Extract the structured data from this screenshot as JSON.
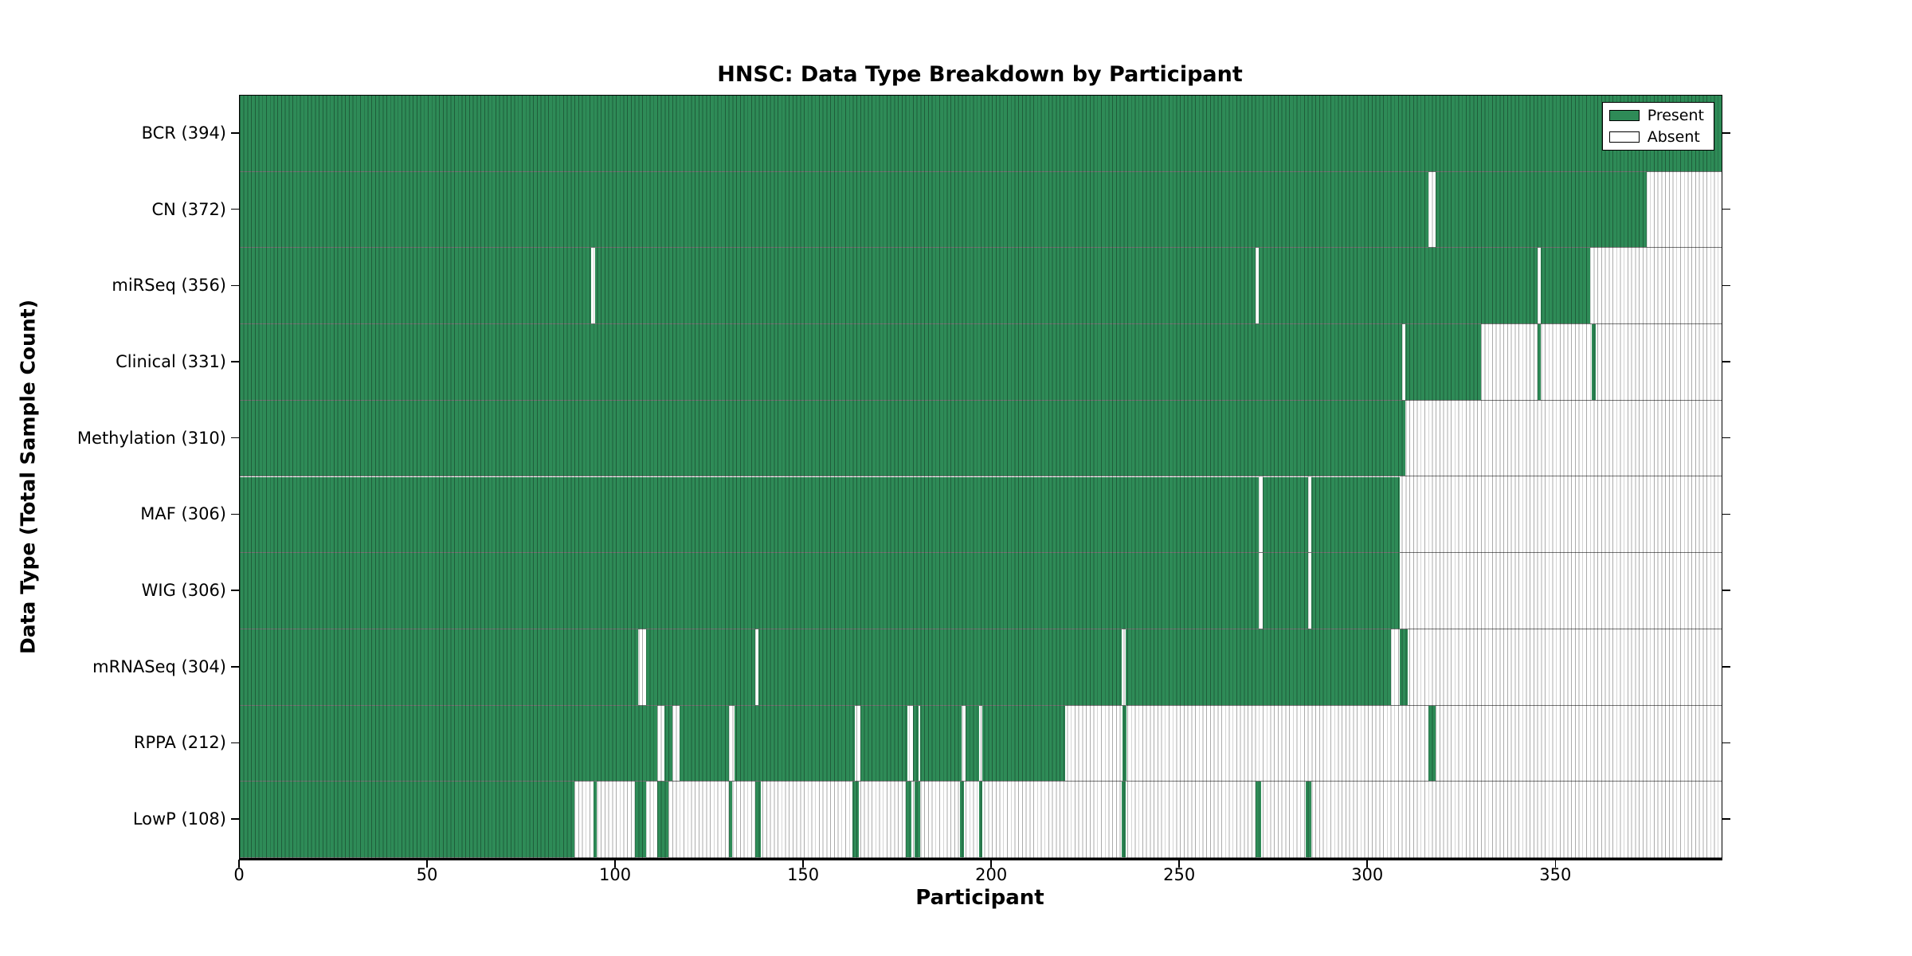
{
  "chart_data": {
    "type": "heatmap",
    "title": "HNSC: Data Type Breakdown by Participant",
    "xlabel": "Participant",
    "ylabel": "Data Type (Total Sample Count)",
    "x_max": 394,
    "x_ticks": [
      0,
      50,
      100,
      150,
      200,
      250,
      300,
      350
    ],
    "grid": "per-participant vertical cell stripes, dark row separator lines",
    "legend_position": "upper right inside plot",
    "colors": {
      "present": "#2e8b57",
      "absent": "#ffffff",
      "stripe_line": "rgba(0,0,0,0.33)",
      "row_separator": "rgba(0,0,0,0.55)",
      "spine": "#000000"
    },
    "legend": [
      {
        "label": "Present",
        "color": "#2e8b57"
      },
      {
        "label": "Absent",
        "color": "#ffffff"
      }
    ],
    "rows": [
      {
        "label": "BCR (394)",
        "name": "BCR",
        "total": 394,
        "present": [
          [
            0,
            394
          ]
        ]
      },
      {
        "label": "CN (372)",
        "name": "CN",
        "total": 372,
        "present": [
          [
            0,
            316
          ],
          [
            318,
            374
          ]
        ]
      },
      {
        "label": "miRSeq (356)",
        "name": "miRSeq",
        "total": 356,
        "present": [
          [
            0,
            93.5
          ],
          [
            94.5,
            270
          ],
          [
            271,
            345
          ],
          [
            346,
            359
          ]
        ]
      },
      {
        "label": "Clinical (331)",
        "name": "Clinical",
        "total": 331,
        "present": [
          [
            0,
            309
          ],
          [
            310,
            330
          ],
          [
            345,
            346
          ],
          [
            359.5,
            360.5
          ]
        ]
      },
      {
        "label": "Methylation (310)",
        "name": "Methylation",
        "total": 310,
        "present": [
          [
            0,
            310
          ]
        ]
      },
      {
        "label": "MAF (306)",
        "name": "MAF",
        "total": 306,
        "present": [
          [
            0,
            271
          ],
          [
            272,
            284
          ],
          [
            285,
            308.5
          ]
        ]
      },
      {
        "label": "WIG (306)",
        "name": "WIG",
        "total": 306,
        "present": [
          [
            0,
            271
          ],
          [
            272,
            284
          ],
          [
            285,
            308.5
          ]
        ]
      },
      {
        "label": "mRNASeq (304)",
        "name": "mRNASeq",
        "total": 304,
        "present": [
          [
            0,
            106
          ],
          [
            108,
            137
          ],
          [
            138,
            234.5
          ],
          [
            235.5,
            306
          ],
          [
            308.5,
            310.5
          ]
        ]
      },
      {
        "label": "RPPA (212)",
        "name": "RPPA",
        "total": 212,
        "present": [
          [
            0,
            111
          ],
          [
            113,
            115
          ],
          [
            117,
            130
          ],
          [
            131.5,
            163.5
          ],
          [
            165,
            177.5
          ],
          [
            179,
            180.5
          ],
          [
            181,
            192
          ],
          [
            193,
            196.5
          ],
          [
            197.5,
            219.5
          ],
          [
            234.8,
            235.8
          ],
          [
            316,
            318
          ]
        ]
      },
      {
        "label": "LowP (108)",
        "name": "LowP",
        "total": 108,
        "present": [
          [
            0,
            89
          ],
          [
            94,
            95
          ],
          [
            105,
            108
          ],
          [
            111,
            114
          ],
          [
            130,
            131
          ],
          [
            137,
            138.5
          ],
          [
            163,
            164.5
          ],
          [
            177,
            178.5
          ],
          [
            179.5,
            181
          ],
          [
            191.5,
            192.5
          ],
          [
            196.5,
            197.5
          ],
          [
            234.5,
            235.5
          ],
          [
            270,
            271.5
          ],
          [
            283.5,
            285
          ]
        ]
      }
    ]
  }
}
